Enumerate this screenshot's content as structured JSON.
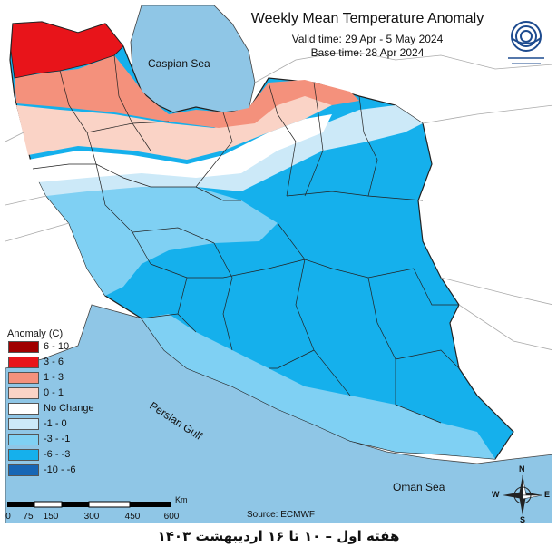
{
  "title": "Weekly Mean Temperature Anomaly",
  "valid_time": "Valid time: 29 Apr - 5 May 2024",
  "base_time": "Base time: 28 Apr 2024",
  "labels": {
    "caspian": "Caspian Sea",
    "gulf": "Persian Gulf",
    "oman": "Oman Sea"
  },
  "source": "Source: ECMWF",
  "caption": "هفته اول – ۱۰ تا ۱۶ اردیبهشت ۱۴۰۳",
  "legend": {
    "title": "Anomaly (C)",
    "items": [
      {
        "label": "6 - 10",
        "color": "#a00000"
      },
      {
        "label": "3 - 6",
        "color": "#e8141a"
      },
      {
        "label": "1 - 3",
        "color": "#f4917c"
      },
      {
        "label": "0 - 1",
        "color": "#fad3c6"
      },
      {
        "label": "No Change",
        "color": "#ffffff"
      },
      {
        "label": "-1 - 0",
        "color": "#cce9f8"
      },
      {
        "label": "-3 - -1",
        "color": "#7fd0f3"
      },
      {
        "label": "-6 - -3",
        "color": "#15b0ec"
      },
      {
        "label": "-10 - -6",
        "color": "#1766b5"
      }
    ]
  },
  "scale_bar": {
    "unit": "Km",
    "ticks": [
      "0",
      "75",
      "150",
      "300",
      "450",
      "600"
    ]
  },
  "compass": {
    "n": "N",
    "s": "S",
    "e": "E",
    "w": "W"
  },
  "colors": {
    "sea": "#8fc6e6",
    "land_outside": "#ffffff",
    "boundary": "#222222"
  },
  "icons": {
    "logo": "meteorological-organization-logo",
    "compass": "compass-rose-icon"
  }
}
